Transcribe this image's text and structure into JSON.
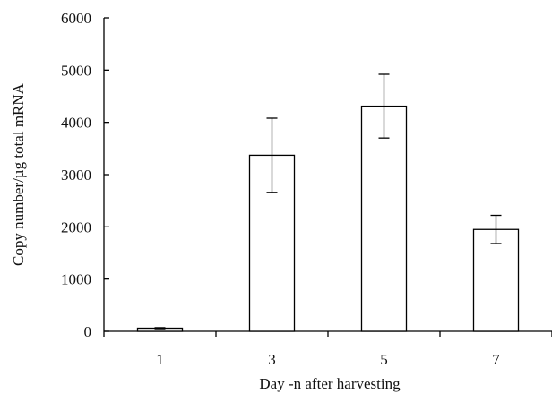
{
  "chart_data": {
    "type": "bar",
    "categories": [
      "1",
      "3",
      "5",
      "7"
    ],
    "values": [
      60,
      3370,
      4310,
      1950
    ],
    "errors": [
      10,
      710,
      610,
      270
    ],
    "title": "",
    "xlabel": "Day -n after harvesting",
    "ylabel": "Copy number/µg total mRNA",
    "ylim": [
      0,
      6000
    ],
    "yticks": [
      0,
      1000,
      2000,
      3000,
      4000,
      5000,
      6000
    ],
    "grid": false,
    "legend": "none"
  }
}
